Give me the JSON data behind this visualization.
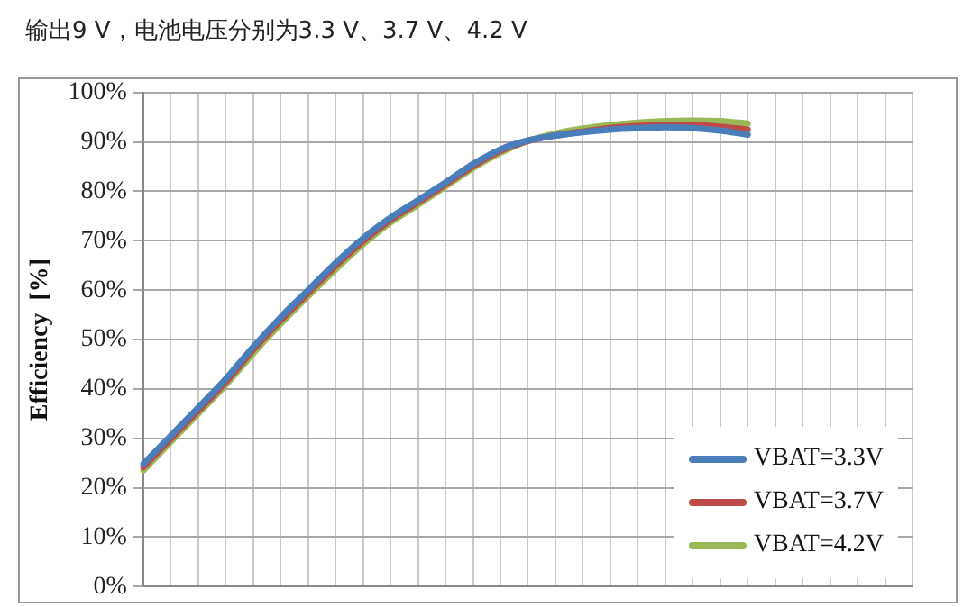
{
  "chart_data": {
    "type": "line",
    "title": "输出9 V，电池电压分别为3.3 V、3.7 V、4.2 V",
    "ylabel": "Efficiency  [%]",
    "categories": [
      null,
      null,
      null,
      null,
      null,
      null,
      null,
      null,
      null,
      null,
      null,
      null,
      null,
      null,
      null,
      null,
      null,
      null,
      null,
      null,
      null,
      null,
      null,
      null,
      null,
      null,
      null,
      null,
      null
    ],
    "series": [
      {
        "name": "VBAT=3.3V",
        "color": "#4a7ebb",
        "values": [
          24.8,
          30.5,
          36.2,
          42,
          48.5,
          54.5,
          60,
          65.5,
          70.5,
          74.7,
          78.2,
          81.8,
          85.5,
          88.5,
          90.3,
          91.3,
          92,
          92.5,
          92.8,
          93,
          92.8,
          92.3,
          91.5,
          null,
          null,
          null,
          null,
          null,
          null
        ]
      },
      {
        "name": "VBAT=3.7V",
        "color": "#be4b48",
        "values": [
          24.2,
          29.9,
          35.6,
          41.4,
          47.9,
          53.9,
          59.4,
          64.9,
          69.9,
          74.2,
          77.8,
          81.4,
          85.1,
          88.2,
          90.2,
          91.3,
          92.1,
          92.8,
          93.2,
          93.4,
          93.4,
          93.1,
          92.5,
          null,
          null,
          null,
          null,
          null,
          null
        ]
      },
      {
        "name": "VBAT=4.2V",
        "color": "#98b954",
        "values": [
          23.5,
          29.3,
          35,
          40.8,
          47.2,
          53.2,
          58.8,
          64.2,
          69.3,
          73.7,
          77.3,
          81,
          84.7,
          87.8,
          90.2,
          91.7,
          92.7,
          93.4,
          93.9,
          94.2,
          94.3,
          94.2,
          93.7,
          null,
          null,
          null,
          null,
          null,
          null
        ]
      }
    ],
    "ylim": [
      0,
      100
    ],
    "yticks": [
      {
        "value": 0,
        "label": "0%"
      },
      {
        "value": 10,
        "label": "10%"
      },
      {
        "value": 20,
        "label": "20%"
      },
      {
        "value": 30,
        "label": "30%"
      },
      {
        "value": 40,
        "label": "40%"
      },
      {
        "value": 50,
        "label": "50%"
      },
      {
        "value": 60,
        "label": "60%"
      },
      {
        "value": 70,
        "label": "70%"
      },
      {
        "value": 80,
        "label": "80%"
      },
      {
        "value": 90,
        "label": "90%"
      },
      {
        "value": 100,
        "label": "100%"
      }
    ],
    "grid": true,
    "legend": "bottom right",
    "marker": "none",
    "line_style": "solid",
    "tick_labels": "y"
  }
}
